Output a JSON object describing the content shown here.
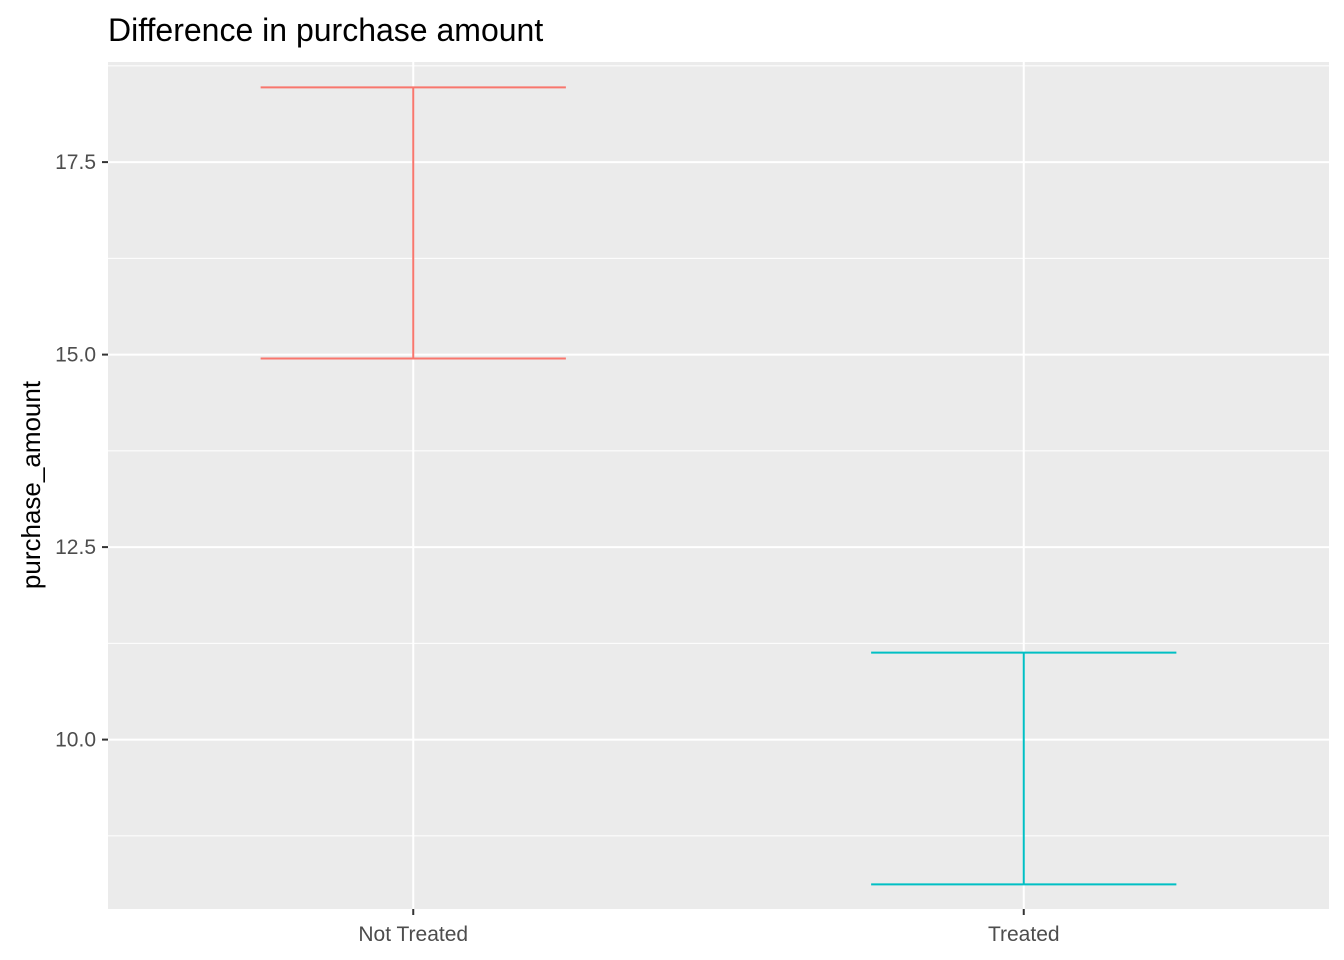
{
  "chart_data": {
    "type": "errorbar",
    "title": "Difference in purchase amount",
    "xlabel": "",
    "ylabel": "purchase_amount",
    "categories": [
      "Not Treated",
      "Treated"
    ],
    "series": [
      {
        "category": "Not Treated",
        "ymin": 14.95,
        "ymax": 18.47,
        "color": "#F8766D"
      },
      {
        "category": "Treated",
        "ymin": 8.12,
        "ymax": 11.13,
        "color": "#00BFC4"
      }
    ],
    "ylim": [
      7.8,
      18.8
    ],
    "yticks": [
      10.0,
      12.5,
      15.0,
      17.5
    ],
    "ytick_labels": [
      "10.0",
      "12.5",
      "15.0",
      "17.5"
    ],
    "grid": true,
    "legend": "none",
    "colors": {
      "panel": "#EBEBEB",
      "grid": "#FFFFFF",
      "tick_text": "#4D4D4D",
      "tick_mark": "#333333"
    }
  }
}
